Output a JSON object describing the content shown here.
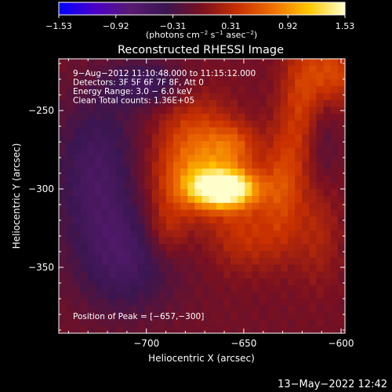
{
  "chart_data": {
    "type": "heatmap",
    "title": "Reconstructed RHESSI Image",
    "xlabel": "Heliocentric X (arcsec)",
    "ylabel": "Heliocentric Y (arcsec)",
    "xlim": [
      -745,
      -598
    ],
    "ylim": [
      -392,
      -217
    ],
    "x_ticks": [
      -700,
      -650,
      -600
    ],
    "x_tick_labels": [
      "−700",
      "−650",
      "−600"
    ],
    "y_ticks": [
      -250,
      -300,
      -350
    ],
    "y_tick_labels": [
      "−250",
      "−300",
      "−350"
    ],
    "colorbar": {
      "min": -1.53,
      "max": 1.53,
      "ticks": [
        -1.53,
        -0.92,
        -0.31,
        0.31,
        0.92,
        1.53
      ],
      "tick_labels": [
        "−1.53",
        "−0.92",
        "−0.31",
        "0.31",
        "0.92",
        "1.53"
      ],
      "unit_main": "(photons cm",
      "unit_exp1": "−2",
      "unit_mid1": " s",
      "unit_exp2": "−1",
      "unit_mid2": " asec",
      "unit_exp3": "−2",
      "unit_end": ")",
      "colors": [
        "#0000ff",
        "#4a00c8",
        "#5a1a72",
        "#3a1650",
        "#7a1020",
        "#c83000",
        "#f07000",
        "#ffc800",
        "#ffffcc"
      ]
    },
    "annotations": [
      "9−Aug−2012 11:10:48.000 to 11:15:12.000",
      "Detectors: 3F 5F 6F 7F 8F, Att 0",
      "Energy Range: 3.0 − 6.0 keV",
      "Clean     Total counts: 1.36E+05"
    ],
    "peak_label": "Position of Peak = [−657,−300]",
    "peak": [
      -657,
      -300
    ],
    "sources": [
      {
        "x": -660,
        "y": -300,
        "peak": 1.53,
        "sx": 12,
        "sy": 8
      },
      {
        "x": -670,
        "y": -296,
        "peak": 0.5,
        "sx": 20,
        "sy": 16
      },
      {
        "x": -675,
        "y": -272,
        "peak": 0.6,
        "sx": 14,
        "sy": 22
      },
      {
        "x": -655,
        "y": -272,
        "peak": 0.45,
        "sx": 9,
        "sy": 10
      },
      {
        "x": -630,
        "y": -298,
        "peak": 0.45,
        "sx": 7,
        "sy": 26
      },
      {
        "x": -620,
        "y": -245,
        "peak": 0.45,
        "sx": 8,
        "sy": 30
      },
      {
        "x": -604,
        "y": -226,
        "peak": 0.55,
        "sx": 10,
        "sy": 15
      },
      {
        "x": -648,
        "y": -330,
        "peak": 0.4,
        "sx": 14,
        "sy": 16
      },
      {
        "x": -690,
        "y": -325,
        "peak": 0.4,
        "sx": 8,
        "sy": 14
      },
      {
        "x": -612,
        "y": -325,
        "peak": 0.3,
        "sx": 8,
        "sy": 25
      },
      {
        "x": -725,
        "y": -290,
        "peak": -0.5,
        "sx": 16,
        "sy": 35
      },
      {
        "x": -700,
        "y": -233,
        "peak": -0.45,
        "sx": 14,
        "sy": 10
      },
      {
        "x": -710,
        "y": -345,
        "peak": -0.45,
        "sx": 18,
        "sy": 25
      },
      {
        "x": -610,
        "y": -270,
        "peak": -0.25,
        "sx": 6,
        "sy": 25
      }
    ]
  },
  "timestamp": "13−May−2022 12:42"
}
